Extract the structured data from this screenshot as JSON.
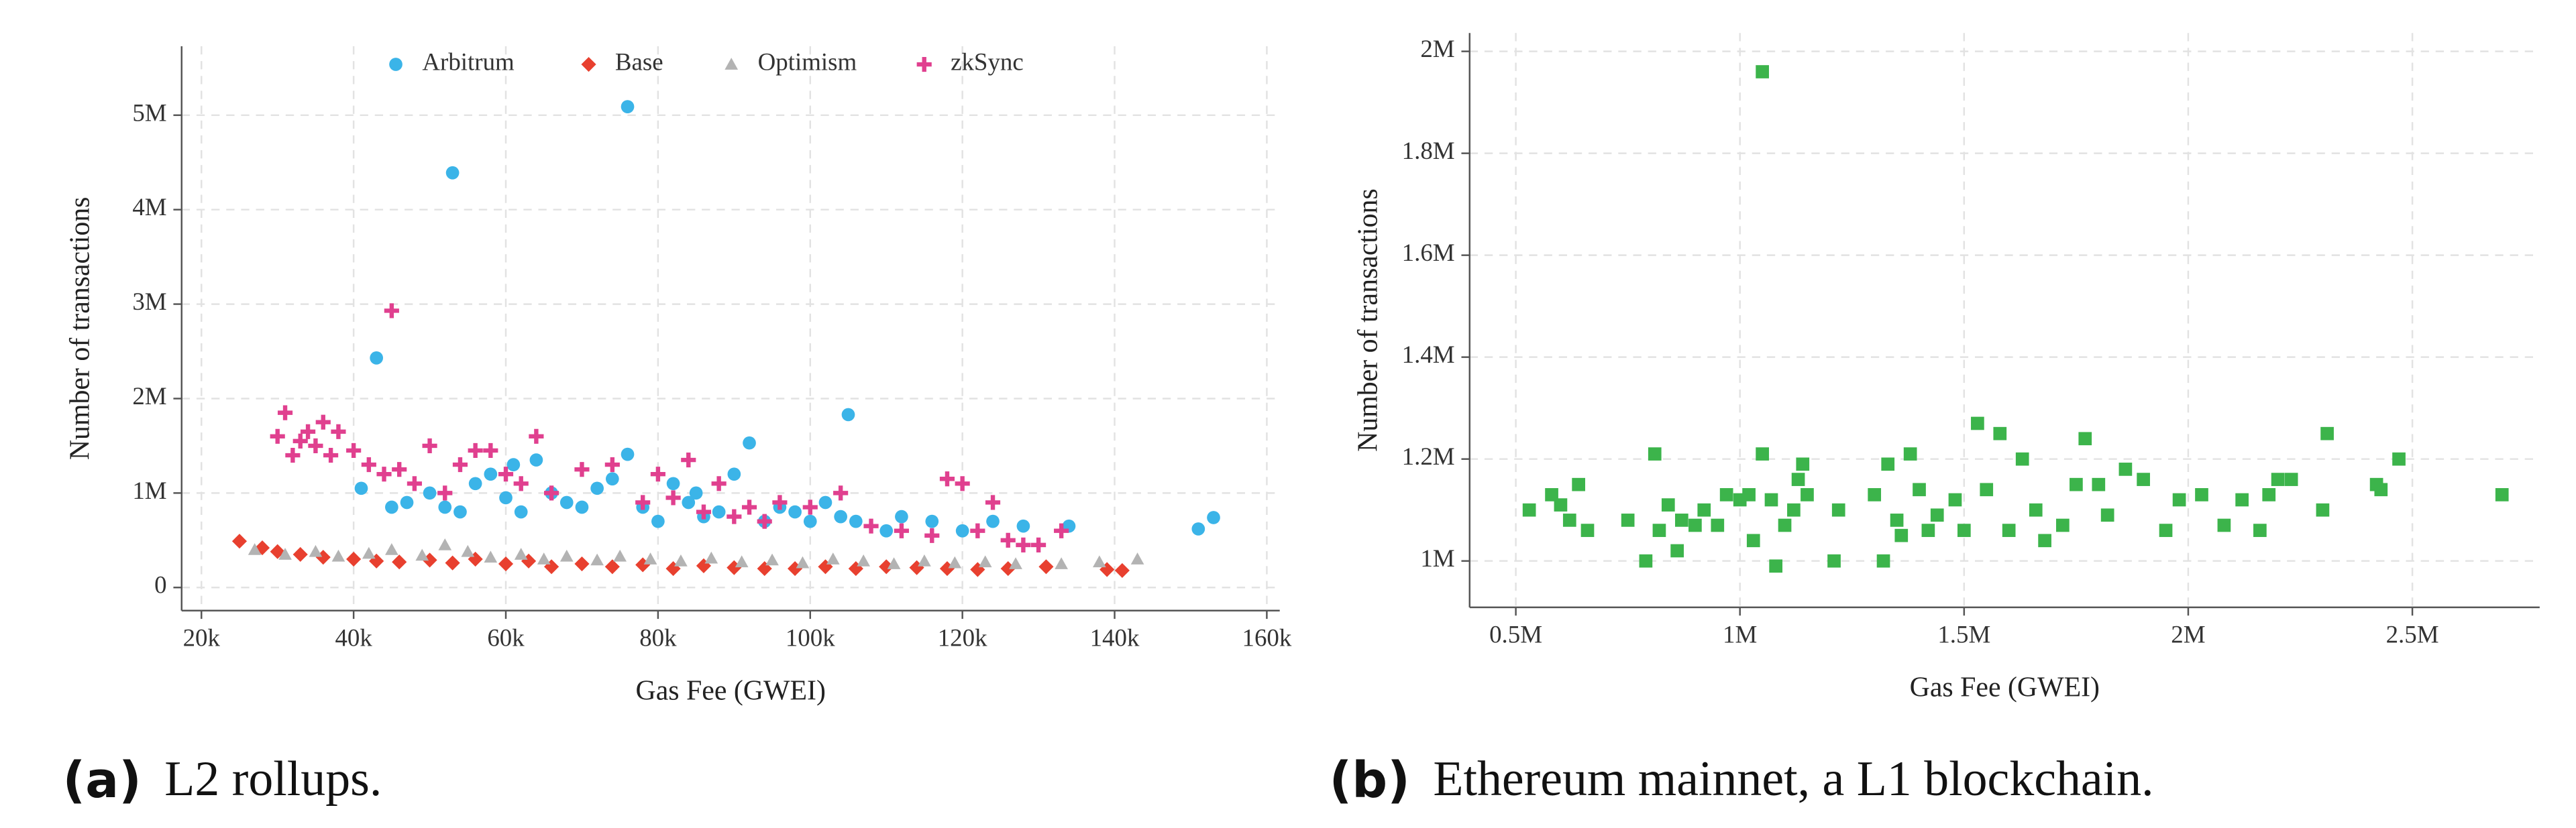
{
  "chart_data": [
    {
      "type": "scatter",
      "caption_label": "(a)",
      "caption": "L2 rollups.",
      "x_label": "Gas Fee (GWEI)",
      "y_label": "Number of transactions",
      "xlim": [
        17400,
        161700
      ],
      "ylim": [
        -245000,
        5730000
      ],
      "xticks": [
        {
          "value": 20000,
          "label": "20k"
        },
        {
          "value": 40000,
          "label": "40k"
        },
        {
          "value": 60000,
          "label": "60k"
        },
        {
          "value": 80000,
          "label": "80k"
        },
        {
          "value": 100000,
          "label": "100k"
        },
        {
          "value": 120000,
          "label": "120k"
        },
        {
          "value": 140000,
          "label": "140k"
        },
        {
          "value": 160000,
          "label": "160k"
        }
      ],
      "yticks": [
        0,
        {
          "value": 1000000,
          "label": "1M"
        },
        {
          "value": 2000000,
          "label": "2M"
        },
        {
          "value": 3000000,
          "label": "3M"
        },
        {
          "value": 4000000,
          "label": "4M"
        },
        {
          "value": 5000000,
          "label": "5M"
        }
      ],
      "grid": true,
      "legend": "upper center",
      "series": [
        {
          "name": "Arbitrum",
          "color": "#3bb4e8",
          "marker": "circle",
          "x": [
            43000,
            53000,
            76000,
            105000,
            92000,
            76000,
            64000,
            58000,
            41000,
            47000,
            50000,
            52000,
            54000,
            56000,
            60000,
            62000,
            66000,
            68000,
            70000,
            72000,
            74000,
            78000,
            80000,
            82000,
            84000,
            86000,
            88000,
            90000,
            94000,
            96000,
            98000,
            100000,
            102000,
            104000,
            106000,
            110000,
            112000,
            116000,
            120000,
            124000,
            128000,
            134000,
            151000,
            153000,
            45000,
            61000,
            85000
          ],
          "values": [
            2430000,
            4390000,
            5090000,
            1830000,
            1530000,
            1410000,
            1350000,
            1200000,
            1050000,
            900000,
            1000000,
            850000,
            800000,
            1100000,
            950000,
            800000,
            1000000,
            900000,
            850000,
            1050000,
            1150000,
            850000,
            700000,
            1100000,
            900000,
            750000,
            800000,
            1200000,
            700000,
            850000,
            800000,
            700000,
            900000,
            750000,
            700000,
            600000,
            750000,
            700000,
            600000,
            700000,
            650000,
            650000,
            620000,
            740000,
            850000,
            1300000,
            1000000
          ]
        },
        {
          "name": "Base",
          "color": "#e8402f",
          "marker": "diamond",
          "x": [
            25000,
            28000,
            30000,
            33000,
            36000,
            40000,
            43000,
            46000,
            50000,
            53000,
            56000,
            60000,
            63000,
            66000,
            70000,
            74000,
            78000,
            82000,
            86000,
            90000,
            94000,
            98000,
            102000,
            106000,
            110000,
            114000,
            118000,
            122000,
            126000,
            131000,
            139000,
            141000
          ],
          "values": [
            490000,
            420000,
            380000,
            350000,
            320000,
            300000,
            280000,
            270000,
            290000,
            260000,
            300000,
            250000,
            280000,
            220000,
            250000,
            220000,
            240000,
            200000,
            230000,
            210000,
            200000,
            200000,
            220000,
            200000,
            220000,
            210000,
            200000,
            190000,
            200000,
            220000,
            190000,
            180000
          ]
        },
        {
          "name": "Optimism",
          "color": "#b3b3b3",
          "marker": "triangle",
          "x": [
            27000,
            31000,
            35000,
            38000,
            42000,
            45000,
            49000,
            52000,
            55000,
            58000,
            62000,
            65000,
            68000,
            72000,
            75000,
            79000,
            83000,
            87000,
            91000,
            95000,
            99000,
            103000,
            107000,
            111000,
            115000,
            119000,
            123000,
            127000,
            133000,
            138000,
            143000
          ],
          "values": [
            400000,
            350000,
            380000,
            330000,
            360000,
            400000,
            340000,
            450000,
            380000,
            320000,
            350000,
            300000,
            330000,
            290000,
            330000,
            300000,
            280000,
            310000,
            270000,
            290000,
            260000,
            300000,
            280000,
            250000,
            280000,
            260000,
            270000,
            250000,
            250000,
            270000,
            300000
          ]
        },
        {
          "name": "zkSync",
          "color": "#e0408f",
          "marker": "plus",
          "x": [
            30000,
            31000,
            32000,
            33000,
            34000,
            35000,
            36000,
            37000,
            38000,
            40000,
            42000,
            44000,
            45000,
            46000,
            48000,
            50000,
            52000,
            54000,
            56000,
            58000,
            60000,
            62000,
            64000,
            66000,
            70000,
            74000,
            78000,
            80000,
            82000,
            84000,
            86000,
            88000,
            90000,
            92000,
            94000,
            96000,
            100000,
            104000,
            108000,
            112000,
            116000,
            118000,
            120000,
            122000,
            124000,
            126000,
            128000,
            130000,
            133000
          ],
          "values": [
            1600000,
            1850000,
            1400000,
            1550000,
            1650000,
            1500000,
            1750000,
            1400000,
            1650000,
            1450000,
            1300000,
            1200000,
            2930000,
            1250000,
            1100000,
            1500000,
            1000000,
            1300000,
            1450000,
            1450000,
            1200000,
            1100000,
            1600000,
            1000000,
            1250000,
            1300000,
            900000,
            1200000,
            950000,
            1350000,
            800000,
            1100000,
            750000,
            850000,
            700000,
            900000,
            850000,
            1000000,
            650000,
            600000,
            550000,
            1150000,
            1100000,
            600000,
            900000,
            500000,
            450000,
            450000,
            600000
          ]
        }
      ]
    },
    {
      "type": "scatter",
      "caption_label": "(b)",
      "caption": "Ethereum mainnet, a L1 blockchain.",
      "x_label": "Gas Fee (GWEI)",
      "y_label": "Number of transactions",
      "xlim": [
        397000,
        2784000
      ],
      "ylim": [
        909000,
        2036000
      ],
      "xticks": [
        {
          "value": 500000,
          "label": "0.5M"
        },
        {
          "value": 1000000,
          "label": "1M"
        },
        {
          "value": 1500000,
          "label": "1.5M"
        },
        {
          "value": 2000000,
          "label": "2M"
        },
        {
          "value": 2500000,
          "label": "2.5M"
        }
      ],
      "yticks": [
        {
          "value": 1000000,
          "label": "1M"
        },
        {
          "value": 1200000,
          "label": "1.2M"
        },
        {
          "value": 1400000,
          "label": "1.4M"
        },
        {
          "value": 1600000,
          "label": "1.6M"
        },
        {
          "value": 1800000,
          "label": "1.8M"
        },
        {
          "value": 2000000,
          "label": "2M"
        }
      ],
      "grid": true,
      "series": [
        {
          "color": "#3cb44b",
          "marker": "square",
          "x": [
            530000,
            580000,
            600000,
            620000,
            640000,
            660000,
            750000,
            790000,
            810000,
            820000,
            840000,
            860000,
            870000,
            900000,
            920000,
            950000,
            970000,
            1000000,
            1020000,
            1030000,
            1050000,
            1050000,
            1070000,
            1080000,
            1100000,
            1120000,
            1130000,
            1140000,
            1150000,
            1210000,
            1220000,
            1300000,
            1320000,
            1330000,
            1350000,
            1360000,
            1380000,
            1400000,
            1420000,
            1440000,
            1480000,
            1500000,
            1530000,
            1550000,
            1580000,
            1600000,
            1630000,
            1660000,
            1680000,
            1720000,
            1750000,
            1770000,
            1800000,
            1820000,
            1860000,
            1900000,
            1950000,
            1980000,
            2030000,
            2080000,
            2120000,
            2160000,
            2180000,
            2200000,
            2230000,
            2300000,
            2310000,
            2420000,
            2430000,
            2470000,
            2700000
          ],
          "values": [
            1100000,
            1130000,
            1110000,
            1080000,
            1150000,
            1060000,
            1080000,
            1000000,
            1210000,
            1060000,
            1110000,
            1020000,
            1080000,
            1070000,
            1100000,
            1070000,
            1130000,
            1120000,
            1130000,
            1040000,
            1960000,
            1210000,
            1120000,
            990000,
            1070000,
            1100000,
            1160000,
            1190000,
            1130000,
            1000000,
            1100000,
            1130000,
            1000000,
            1190000,
            1080000,
            1050000,
            1210000,
            1140000,
            1060000,
            1090000,
            1120000,
            1060000,
            1270000,
            1140000,
            1250000,
            1060000,
            1200000,
            1100000,
            1040000,
            1070000,
            1150000,
            1240000,
            1150000,
            1090000,
            1180000,
            1160000,
            1060000,
            1120000,
            1130000,
            1070000,
            1120000,
            1060000,
            1130000,
            1160000,
            1160000,
            1100000,
            1250000,
            1150000,
            1140000,
            1200000,
            1130000
          ]
        }
      ]
    }
  ]
}
